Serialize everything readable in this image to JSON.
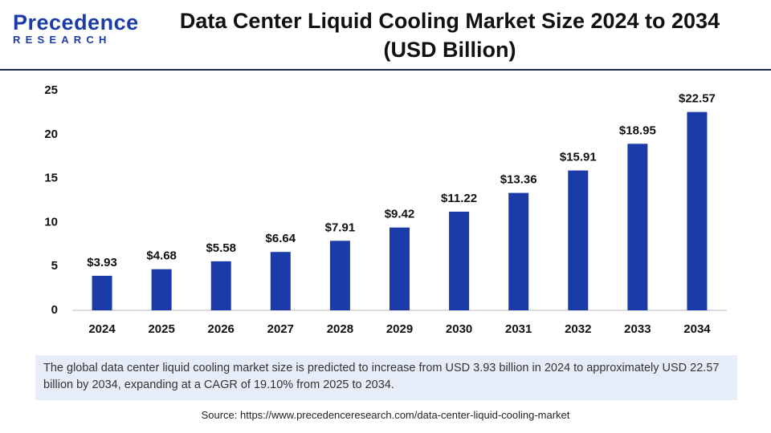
{
  "logo": {
    "name": "Precedence",
    "tagline": "RESEARCH"
  },
  "chart_data": {
    "type": "bar",
    "title": "Data Center Liquid Cooling Market Size 2024 to 2034 (USD Billion)",
    "categories": [
      "2024",
      "2025",
      "2026",
      "2027",
      "2028",
      "2029",
      "2030",
      "2031",
      "2032",
      "2033",
      "2034"
    ],
    "values": [
      3.93,
      4.68,
      5.58,
      6.64,
      7.91,
      9.42,
      11.22,
      13.36,
      15.91,
      18.95,
      22.57
    ],
    "value_labels": [
      "$3.93",
      "$4.68",
      "$5.58",
      "$6.64",
      "$7.91",
      "$9.42",
      "$11.22",
      "$13.36",
      "$15.91",
      "$18.95",
      "$22.57"
    ],
    "color": "#1b3ca8",
    "ylim": [
      0,
      25
    ],
    "yticks": [
      0,
      5,
      10,
      15,
      20,
      25
    ],
    "grid": false
  },
  "description": "The global data center liquid cooling market size is predicted to increase from USD 3.93 billion in 2024 to approximately USD 22.57 billion by 2034, expanding at a CAGR of 19.10% from 2025 to 2034.",
  "source": "Source: https://www.precedenceresearch.com/data-center-liquid-cooling-market"
}
